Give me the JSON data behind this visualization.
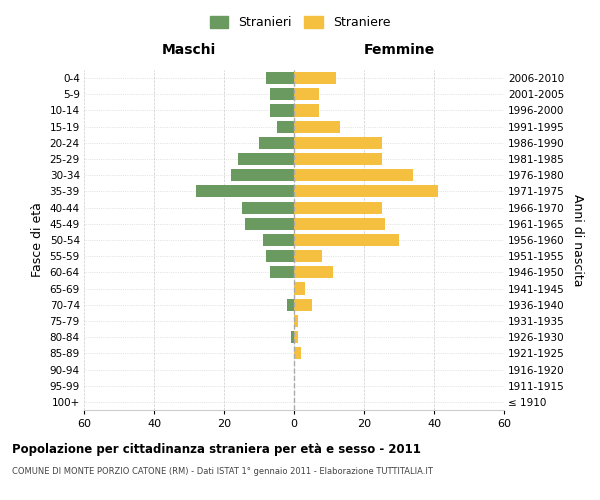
{
  "age_groups": [
    "100+",
    "95-99",
    "90-94",
    "85-89",
    "80-84",
    "75-79",
    "70-74",
    "65-69",
    "60-64",
    "55-59",
    "50-54",
    "45-49",
    "40-44",
    "35-39",
    "30-34",
    "25-29",
    "20-24",
    "15-19",
    "10-14",
    "5-9",
    "0-4"
  ],
  "birth_years": [
    "≤ 1910",
    "1911-1915",
    "1916-1920",
    "1921-1925",
    "1926-1930",
    "1931-1935",
    "1936-1940",
    "1941-1945",
    "1946-1950",
    "1951-1955",
    "1956-1960",
    "1961-1965",
    "1966-1970",
    "1971-1975",
    "1976-1980",
    "1981-1985",
    "1986-1990",
    "1991-1995",
    "1996-2000",
    "2001-2005",
    "2006-2010"
  ],
  "maschi": [
    0,
    0,
    0,
    0,
    1,
    0,
    2,
    0,
    7,
    8,
    9,
    14,
    15,
    28,
    18,
    16,
    10,
    5,
    7,
    7,
    8
  ],
  "femmine": [
    0,
    0,
    0,
    2,
    1,
    1,
    5,
    3,
    11,
    8,
    30,
    26,
    25,
    41,
    34,
    25,
    25,
    13,
    7,
    7,
    12
  ],
  "color_maschi": "#6a9a5f",
  "color_femmine": "#f5c040",
  "title": "Popolazione per cittadinanza straniera per età e sesso - 2011",
  "subtitle": "COMUNE DI MONTE PORZIO CATONE (RM) - Dati ISTAT 1° gennaio 2011 - Elaborazione TUTTITALIA.IT",
  "legend_maschi": "Stranieri",
  "legend_femmine": "Straniere",
  "xlabel_left": "Maschi",
  "xlabel_right": "Femmine",
  "ylabel_left": "Fasce di età",
  "ylabel_right": "Anni di nascita",
  "xlim": 60,
  "background_color": "#ffffff",
  "grid_color": "#cccccc"
}
